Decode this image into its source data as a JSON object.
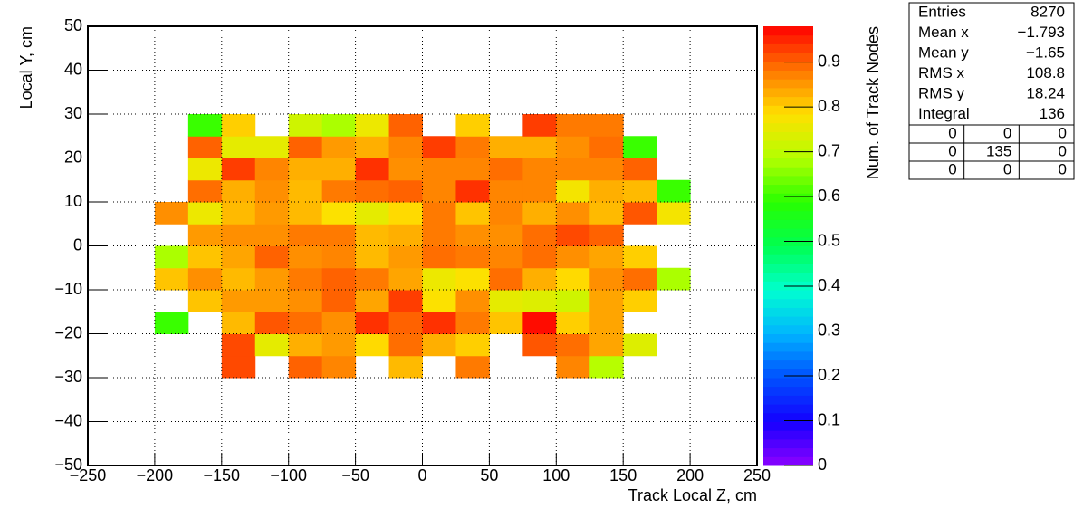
{
  "chart_data": {
    "type": "heatmap",
    "x_label": "Track Local Z, cm",
    "y_label": "Local Y, cm",
    "z_label": "Num. of Track Nodes",
    "x_bins": [
      -200,
      -175,
      -150,
      -125,
      -100,
      -75,
      -50,
      -25,
      0,
      25,
      50,
      75,
      100,
      125,
      150,
      175,
      200
    ],
    "y_bins": [
      -30,
      -25,
      -20,
      -15,
      -10,
      -5,
      0,
      5,
      10,
      15,
      20,
      25,
      30
    ],
    "z": [
      [
        null,
        null,
        0.92,
        null,
        0.9,
        0.87,
        null,
        0.82,
        null,
        0.88,
        null,
        null,
        0.87,
        0.69,
        null,
        null
      ],
      [
        null,
        null,
        0.92,
        0.75,
        0.83,
        0.85,
        0.79,
        0.89,
        0.83,
        0.8,
        null,
        0.91,
        0.89,
        0.84,
        0.74,
        null
      ],
      [
        0.6,
        null,
        0.82,
        0.91,
        0.89,
        0.86,
        0.94,
        0.9,
        0.94,
        0.88,
        0.81,
        0.97,
        0.8,
        0.84,
        null,
        null
      ],
      [
        null,
        0.81,
        0.85,
        0.85,
        0.86,
        0.9,
        0.84,
        0.93,
        0.78,
        0.86,
        0.75,
        0.74,
        0.72,
        0.84,
        0.8,
        null
      ],
      [
        0.81,
        0.86,
        0.82,
        0.85,
        0.88,
        0.9,
        0.88,
        0.84,
        0.76,
        0.78,
        0.89,
        0.83,
        0.79,
        0.86,
        0.89,
        0.68
      ],
      [
        0.68,
        0.81,
        0.84,
        0.9,
        0.86,
        0.87,
        0.82,
        0.85,
        0.89,
        0.88,
        0.87,
        0.89,
        0.86,
        0.84,
        0.8,
        null
      ],
      [
        null,
        0.85,
        0.86,
        0.86,
        0.88,
        0.88,
        0.82,
        0.83,
        0.88,
        0.86,
        0.86,
        0.89,
        0.92,
        0.9,
        null,
        null
      ],
      [
        0.86,
        0.76,
        0.82,
        0.85,
        0.82,
        0.78,
        0.75,
        0.79,
        0.88,
        0.81,
        0.87,
        0.83,
        0.86,
        0.82,
        0.91,
        0.77
      ],
      [
        null,
        0.89,
        0.83,
        0.86,
        0.82,
        0.88,
        0.89,
        0.9,
        0.87,
        0.94,
        0.87,
        0.87,
        0.77,
        0.83,
        0.82,
        0.6
      ],
      [
        null,
        0.76,
        0.93,
        0.87,
        0.83,
        0.83,
        0.94,
        0.86,
        0.87,
        0.87,
        0.89,
        0.87,
        0.87,
        0.87,
        0.9,
        null
      ],
      [
        null,
        0.9,
        0.75,
        0.75,
        0.9,
        0.85,
        0.83,
        0.87,
        0.93,
        0.88,
        0.83,
        0.83,
        0.86,
        0.89,
        0.6,
        null
      ],
      [
        null,
        0.6,
        0.8,
        null,
        0.72,
        0.68,
        0.76,
        0.9,
        null,
        0.8,
        null,
        0.93,
        0.88,
        0.88,
        null,
        null
      ]
    ],
    "xlim": [
      -250,
      250
    ],
    "ylim": [
      -50,
      50
    ],
    "zlim": [
      0,
      0.98
    ],
    "xticks": [
      {
        "value": -250,
        "label": "−250"
      },
      {
        "value": -200,
        "label": "−200"
      },
      {
        "value": -150,
        "label": "−150"
      },
      {
        "value": -100,
        "label": "−100"
      },
      {
        "value": -50,
        "label": "−50"
      },
      0,
      50,
      100,
      150,
      200,
      250
    ],
    "yticks": [
      {
        "value": -50,
        "label": "−50"
      },
      {
        "value": -40,
        "label": "−40"
      },
      {
        "value": -30,
        "label": "−30"
      },
      {
        "value": -20,
        "label": "−20"
      },
      {
        "value": -10,
        "label": "−10"
      },
      0,
      10,
      20,
      30,
      40,
      50
    ],
    "zticks": [
      0,
      0.1,
      0.2,
      0.3,
      0.4,
      0.5,
      0.6,
      0.7,
      0.8,
      0.9
    ],
    "grid": true,
    "colors": [
      "#8c00ff",
      "#1400ff",
      "#0050ff",
      "#00b4ff",
      "#00ffd0",
      "#00ff50",
      "#28ff00",
      "#b4ff00",
      "#ffe000",
      "#ff7800",
      "#ff0000"
    ],
    "stats": [
      {
        "name": "Entries",
        "value": 8270
      },
      {
        "name": "Mean x",
        "value": -1.793,
        "label": "−1.793"
      },
      {
        "name": "Mean y",
        "value": -1.65,
        "label": "−1.65"
      },
      {
        "name": "RMS x",
        "value": 108.8
      },
      {
        "name": "RMS y",
        "value": 18.24
      },
      {
        "name": "Integral",
        "value": 136
      }
    ],
    "stats_grid": [
      [
        0,
        0,
        0
      ],
      [
        0,
        135,
        0
      ],
      [
        0,
        0,
        0
      ]
    ]
  }
}
